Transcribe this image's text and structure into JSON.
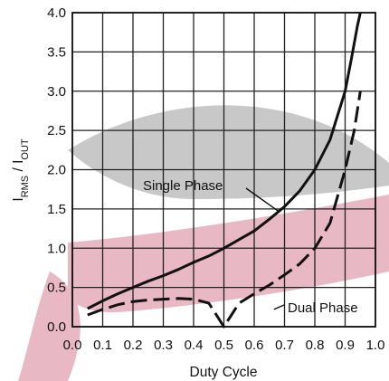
{
  "chart_data": {
    "type": "line",
    "xlabel": "Duty Cycle",
    "ylabel": {
      "parts": [
        {
          "text": "I",
          "sub": false
        },
        {
          "text": "RMS",
          "sub": true
        },
        {
          "text": " / I",
          "sub": false
        },
        {
          "text": "OUT",
          "sub": true
        }
      ]
    },
    "xlim": [
      0.0,
      1.0
    ],
    "ylim": [
      0.0,
      4.0
    ],
    "x_ticks": [
      "0.0",
      "0.1",
      "0.2",
      "0.3",
      "0.4",
      "0.5",
      "0.6",
      "0.7",
      "0.8",
      "0.9",
      "1.0"
    ],
    "y_ticks": [
      "0.0",
      "0.5",
      "1.0",
      "1.5",
      "2.0",
      "2.5",
      "3.0",
      "3.5",
      "4.0"
    ],
    "grid": true,
    "series": [
      {
        "name": "Single Phase",
        "style": "solid",
        "color": "#111111",
        "x": [
          0.05,
          0.1,
          0.15,
          0.2,
          0.25,
          0.3,
          0.35,
          0.4,
          0.45,
          0.5,
          0.55,
          0.6,
          0.65,
          0.7,
          0.75,
          0.8,
          0.85,
          0.9,
          0.92,
          0.94,
          0.95
        ],
        "y": [
          0.23,
          0.33,
          0.42,
          0.5,
          0.58,
          0.65,
          0.73,
          0.82,
          0.9,
          1.0,
          1.11,
          1.22,
          1.37,
          1.53,
          1.73,
          2.0,
          2.38,
          3.0,
          3.4,
          3.82,
          4.0
        ]
      },
      {
        "name": "Dual Phase",
        "style": "dashed",
        "color": "#111111",
        "x": [
          0.05,
          0.1,
          0.15,
          0.2,
          0.25,
          0.3,
          0.35,
          0.4,
          0.45,
          0.5,
          0.55,
          0.6,
          0.65,
          0.7,
          0.75,
          0.8,
          0.85,
          0.9,
          0.93,
          0.95
        ],
        "y": [
          0.15,
          0.22,
          0.28,
          0.32,
          0.34,
          0.35,
          0.36,
          0.35,
          0.3,
          0.0,
          0.3,
          0.42,
          0.53,
          0.66,
          0.8,
          1.0,
          1.32,
          2.0,
          2.5,
          3.0
        ]
      }
    ],
    "annotations": [
      {
        "text": "Single Phase",
        "target_series": "Single Phase",
        "target_x": 0.68,
        "target_y": 1.47
      },
      {
        "text": "Dual Phase",
        "target_series": "Dual Phase",
        "target_x": 0.665,
        "target_y": 0.22
      }
    ],
    "watermark_colors": {
      "gray": "#c8c8c8",
      "pink": "#e8b8c4"
    }
  }
}
